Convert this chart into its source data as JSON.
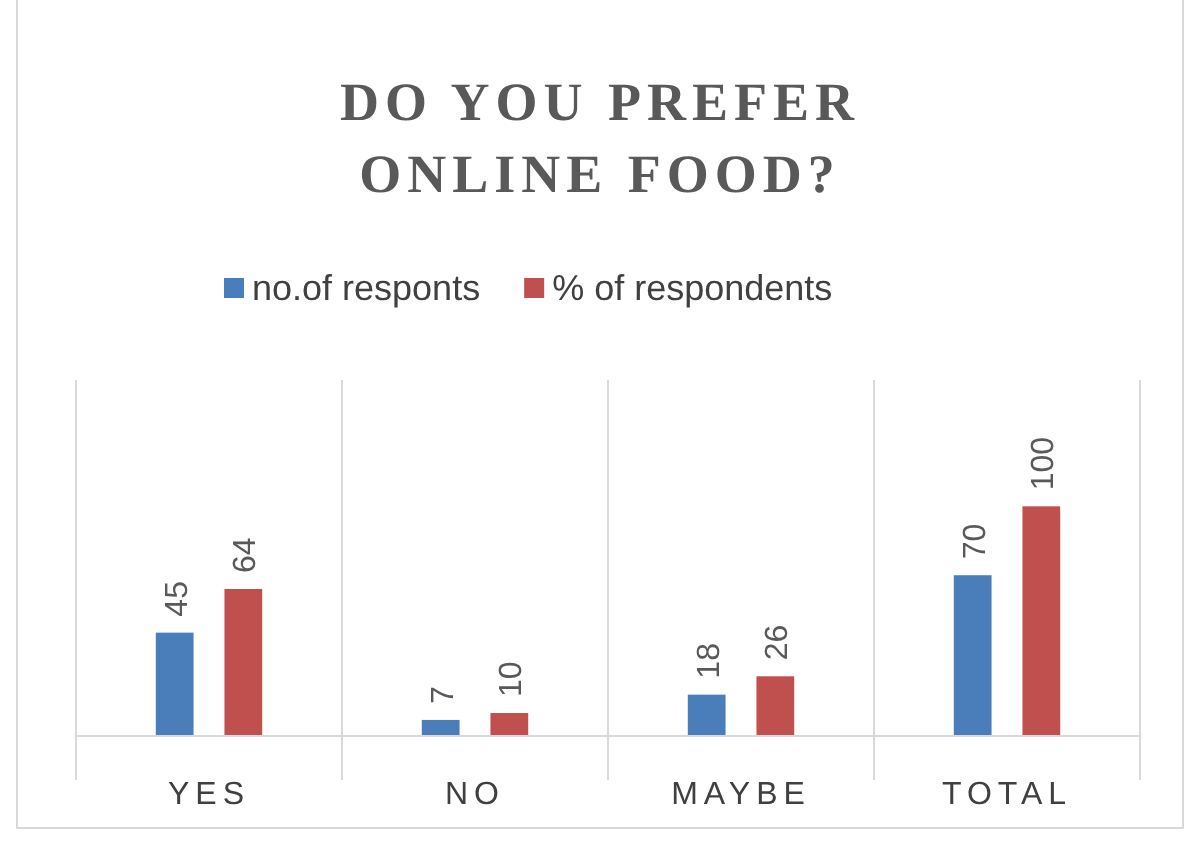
{
  "chart_data": {
    "type": "bar",
    "title": "DO YOU PREFER ONLINE FOOD?",
    "categories": [
      "YES",
      "NO",
      "MAYBE",
      "TOTAL"
    ],
    "series": [
      {
        "name": "no.of responts",
        "color": "#4a7ebb",
        "values": [
          45,
          7,
          18,
          70
        ]
      },
      {
        "name": "% of respondents",
        "color": "#c0504d",
        "values": [
          64,
          10,
          26,
          100
        ]
      }
    ],
    "data_labels": true,
    "legend": "top",
    "grid": "x"
  }
}
